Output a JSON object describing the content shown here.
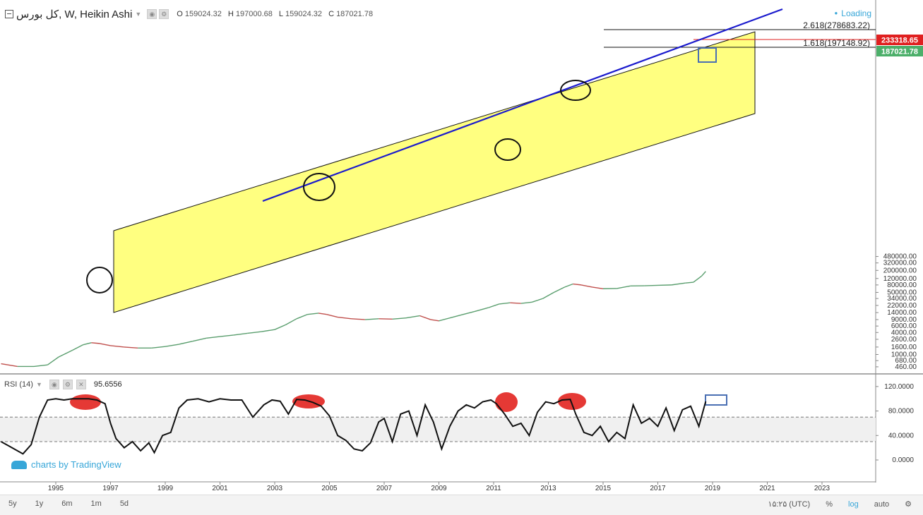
{
  "header": {
    "symbol": "کل بورس, W, Heikin Ashi",
    "o_label": "O",
    "o_value": "159024.32",
    "h_label": "H",
    "h_value": "197000.68",
    "l_label": "L",
    "l_value": "159024.32",
    "c_label": "C",
    "c_value": "187021.78",
    "loading": "Loading"
  },
  "rsi_header": {
    "label": "RSI (14)",
    "value": "95.6556"
  },
  "watermark": "charts by TradingView",
  "bottom_bar": {
    "ranges": [
      "5y",
      "1y",
      "6m",
      "1m",
      "5d"
    ],
    "time": "۱۵:۲۵ (UTC)",
    "percent": "%",
    "log": "log",
    "auto": "auto"
  },
  "colors": {
    "channel_fill": "#ffff80",
    "trendline": "#1a1acd",
    "up": "#5a9e6e",
    "down": "#c0504d",
    "rsi_line": "#111111",
    "rsi_band": "#f0f0f0",
    "highlight": "#e53935",
    "current_price": "#4caf6a",
    "fib_price": "#e02020"
  },
  "chart_data": [
    {
      "type": "line",
      "subtype": "heikin-ashi",
      "scale": "log",
      "x_ticks": [
        "1995",
        "1997",
        "1999",
        "2001",
        "2003",
        "2005",
        "2007",
        "2009",
        "2011",
        "2013",
        "2015",
        "2017",
        "2019",
        "2021",
        "2023"
      ],
      "y_ticks": [
        "480000.00",
        "320000.00",
        "200000.00",
        "120000.00",
        "80000.00",
        "50000.00",
        "34000.00",
        "22000.00",
        "14000.00",
        "9000.00",
        "6000.00",
        "4000.00",
        "2600.00",
        "1600.00",
        "1000.00",
        "680.00",
        "460.00"
      ],
      "series": [
        {
          "x": [
            1993.0,
            1993.6,
            1994.2,
            1994.7,
            1995.1,
            1995.6,
            1996.0,
            1996.3,
            1996.6,
            1997.0,
            1997.5,
            1998.0,
            1998.5,
            1999.0,
            1999.5,
            2000.0,
            2000.5,
            2001.0,
            2001.5,
            2002.0,
            2002.5,
            2003.0,
            2003.4,
            2003.8,
            2004.2,
            2004.6,
            2004.9,
            2005.3,
            2005.8,
            2006.3,
            2006.8,
            2007.3,
            2007.8,
            2008.3,
            2008.7,
            2009.0,
            2009.4,
            2009.8,
            2010.3,
            2010.8,
            2011.2,
            2011.6,
            2012.0,
            2012.4,
            2012.8,
            2013.2,
            2013.6,
            2013.9,
            2014.2,
            2014.6,
            2015.0,
            2015.5,
            2016.0,
            2016.5,
            2017.0,
            2017.5,
            2018.0,
            2018.3,
            2018.6,
            2018.75
          ],
          "y": [
            560,
            470,
            470,
            520,
            850,
            1300,
            1850,
            2100,
            2000,
            1750,
            1600,
            1500,
            1500,
            1650,
            1900,
            2300,
            2800,
            3100,
            3400,
            3800,
            4200,
            4800,
            6500,
            9500,
            12500,
            13500,
            12500,
            10500,
            9500,
            9000,
            9500,
            9300,
            10000,
            11500,
            9000,
            8300,
            10000,
            12000,
            15000,
            19000,
            24000,
            26000,
            25000,
            27000,
            34000,
            50000,
            70000,
            85000,
            80000,
            70000,
            63000,
            64000,
            75000,
            76000,
            78000,
            80000,
            90000,
            95000,
            140000,
            187021.78
          ]
        }
      ],
      "annotations": [
        {
          "type": "fib_level",
          "ratio": "2.618",
          "price": 278683.22,
          "label": "2.618(278683.22)"
        },
        {
          "type": "fib_level",
          "ratio": "1.618",
          "price": 197148.92,
          "label": "1.618(197148.92)"
        },
        {
          "type": "price_badge",
          "value": "233318.65"
        },
        {
          "type": "price_badge",
          "value": "187021.78"
        }
      ]
    },
    {
      "type": "line",
      "name": "RSI (14)",
      "y_ticks": [
        "120.0000",
        "80.0000",
        "40.0000",
        "0.0000"
      ],
      "ylim": [
        -10,
        125
      ],
      "band": [
        30,
        70
      ],
      "x": [
        1993.0,
        1993.4,
        1993.8,
        1994.1,
        1994.4,
        1994.7,
        1995.0,
        1995.3,
        1995.6,
        1995.9,
        1996.2,
        1996.5,
        1996.8,
        1997.0,
        1997.2,
        1997.5,
        1997.8,
        1998.1,
        1998.4,
        1998.6,
        1998.9,
        1999.2,
        1999.5,
        1999.8,
        2000.2,
        2000.6,
        2001.0,
        2001.4,
        2001.8,
        2002.2,
        2002.6,
        2002.9,
        2003.2,
        2003.5,
        2003.8,
        2004.1,
        2004.4,
        2004.7,
        2005.0,
        2005.3,
        2005.6,
        2005.9,
        2006.2,
        2006.5,
        2006.8,
        2007.0,
        2007.3,
        2007.6,
        2007.9,
        2008.2,
        2008.5,
        2008.8,
        2009.1,
        2009.4,
        2009.7,
        2010.0,
        2010.3,
        2010.6,
        2010.9,
        2011.1,
        2011.4,
        2011.7,
        2012.0,
        2012.3,
        2012.6,
        2012.9,
        2013.2,
        2013.5,
        2013.8,
        2014.0,
        2014.3,
        2014.6,
        2014.9,
        2015.2,
        2015.5,
        2015.8,
        2016.1,
        2016.4,
        2016.7,
        2017.0,
        2017.3,
        2017.6,
        2017.9,
        2018.2,
        2018.5,
        2018.75
      ],
      "y": [
        30,
        20,
        10,
        25,
        70,
        98,
        100,
        98,
        100,
        100,
        100,
        98,
        92,
        60,
        35,
        20,
        30,
        15,
        28,
        12,
        40,
        45,
        85,
        98,
        100,
        95,
        100,
        98,
        98,
        70,
        90,
        98,
        96,
        75,
        99,
        98,
        94,
        88,
        72,
        40,
        32,
        18,
        15,
        28,
        62,
        68,
        30,
        75,
        80,
        40,
        90,
        62,
        18,
        55,
        80,
        90,
        85,
        95,
        98,
        92,
        75,
        55,
        60,
        40,
        78,
        95,
        92,
        98,
        99,
        75,
        45,
        40,
        55,
        30,
        45,
        35,
        90,
        60,
        68,
        55,
        85,
        48,
        82,
        88,
        55,
        95.66
      ]
    }
  ]
}
